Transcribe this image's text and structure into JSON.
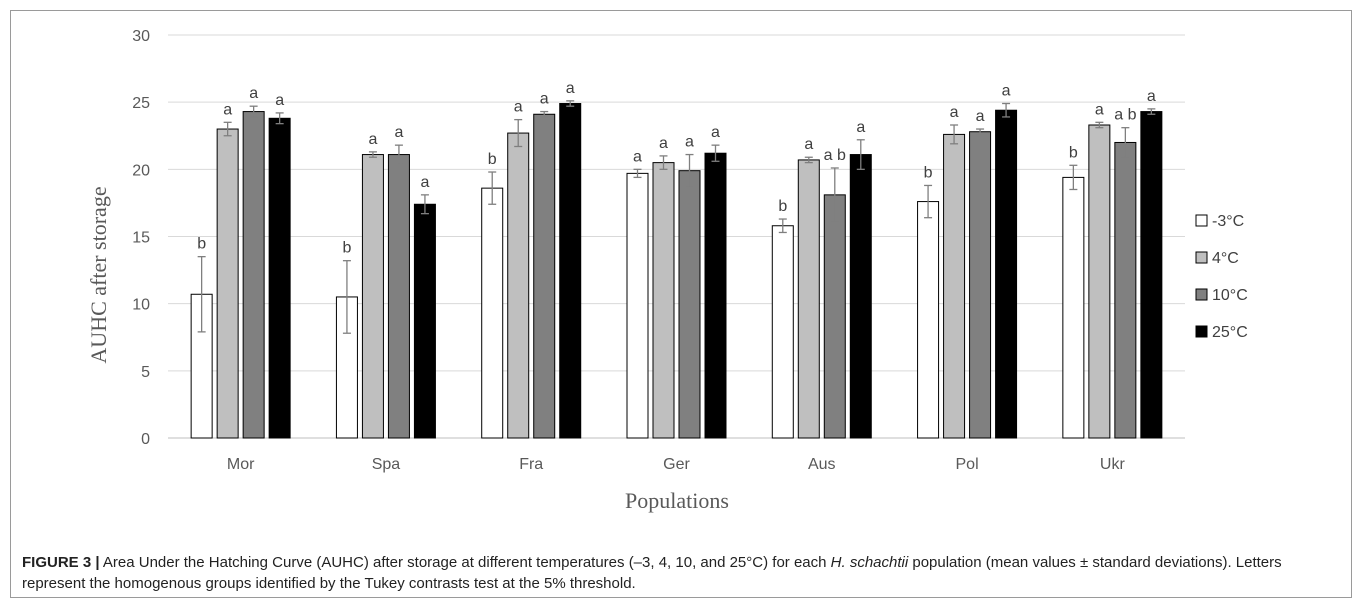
{
  "chart_data": {
    "type": "bar",
    "xlabel": "Populations",
    "ylabel": "AUHC after storage",
    "ylim": [
      0,
      30
    ],
    "yticks": [
      0,
      5,
      10,
      15,
      20,
      25,
      30
    ],
    "grid": true,
    "legend_position": "right",
    "categories": [
      "Mor",
      "Spa",
      "Fra",
      "Ger",
      "Aus",
      "Pol",
      "Ukr"
    ],
    "series": [
      {
        "name": "-3°C",
        "color": "#ffffff",
        "values": [
          10.7,
          10.5,
          18.6,
          19.7,
          15.8,
          17.6,
          19.4
        ],
        "errors": [
          2.8,
          2.7,
          1.2,
          0.3,
          0.5,
          1.2,
          0.9
        ],
        "letters": [
          "b",
          "b",
          "b",
          "a",
          "b",
          "b",
          "b"
        ]
      },
      {
        "name": "4°C",
        "color": "#bfbfbf",
        "values": [
          23.0,
          21.1,
          22.7,
          20.5,
          20.7,
          22.6,
          23.3
        ],
        "errors": [
          0.5,
          0.2,
          1.0,
          0.5,
          0.2,
          0.7,
          0.2
        ],
        "letters": [
          "a",
          "a",
          "a",
          "a",
          "a",
          "a",
          "a"
        ]
      },
      {
        "name": "10°C",
        "color": "#808080",
        "values": [
          24.3,
          21.1,
          24.1,
          19.9,
          18.1,
          22.8,
          22.0
        ],
        "errors": [
          0.4,
          0.7,
          0.2,
          1.2,
          2.0,
          0.2,
          1.1
        ],
        "letters": [
          "a",
          "a",
          "a",
          "a",
          "a b",
          "a",
          "a b"
        ]
      },
      {
        "name": "25°C",
        "color": "#000000",
        "values": [
          23.8,
          17.4,
          24.9,
          21.2,
          21.1,
          24.4,
          24.3
        ],
        "errors": [
          0.4,
          0.7,
          0.2,
          0.6,
          1.1,
          0.5,
          0.2
        ],
        "letters": [
          "a",
          "a",
          "a",
          "a",
          "a",
          "a",
          "a"
        ]
      }
    ]
  },
  "caption": {
    "label": "FIGURE 3 |",
    "text_before_italic": "Area Under the Hatching Curve (AUHC) after storage at different temperatures (–3, 4, 10, and 25°C) for each",
    "italic": "H. schachtii",
    "text_after_italic": "population (mean values ± standard deviations). Letters represent the homogenous groups identified by the Tukey contrasts test at the 5% threshold."
  }
}
